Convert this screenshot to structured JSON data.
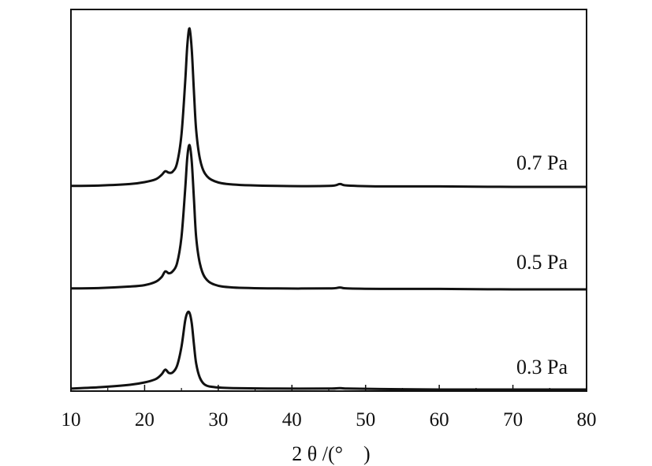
{
  "chart_data": {
    "type": "line",
    "title": "",
    "xlabel": "2 θ /(°　)",
    "ylabel": "",
    "xlim": [
      10,
      80
    ],
    "x_ticks": [
      10,
      20,
      30,
      40,
      50,
      60,
      70,
      80
    ],
    "y_ticks_labeled": false,
    "grid": false,
    "legend": "none",
    "line_color": "#111111",
    "series": [
      {
        "name": "0.7 Pa",
        "points": [
          [
            10,
            0.02
          ],
          [
            14,
            0.03
          ],
          [
            18,
            0.06
          ],
          [
            20,
            0.1
          ],
          [
            21.5,
            0.16
          ],
          [
            22.3,
            0.25
          ],
          [
            22.8,
            0.33
          ],
          [
            23.3,
            0.3
          ],
          [
            23.8,
            0.32
          ],
          [
            24.4,
            0.5
          ],
          [
            25.0,
            1.1
          ],
          [
            25.5,
            2.2
          ],
          [
            25.8,
            3.0
          ],
          [
            26.1,
            3.35
          ],
          [
            26.4,
            2.9
          ],
          [
            26.7,
            2.0
          ],
          [
            27.0,
            1.2
          ],
          [
            27.5,
            0.6
          ],
          [
            28.2,
            0.28
          ],
          [
            29.5,
            0.12
          ],
          [
            32,
            0.05
          ],
          [
            38,
            0.02
          ],
          [
            45,
            0.02
          ],
          [
            46.5,
            0.06
          ],
          [
            47.5,
            0.03
          ],
          [
            52,
            0.01
          ],
          [
            60,
            0.01
          ],
          [
            70,
            0.0
          ],
          [
            80,
            0.0
          ]
        ]
      },
      {
        "name": "0.5 Pa",
        "points": [
          [
            10,
            0.02
          ],
          [
            14,
            0.03
          ],
          [
            18,
            0.06
          ],
          [
            20,
            0.09
          ],
          [
            21.5,
            0.16
          ],
          [
            22.3,
            0.26
          ],
          [
            22.8,
            0.38
          ],
          [
            23.3,
            0.34
          ],
          [
            23.8,
            0.38
          ],
          [
            24.4,
            0.55
          ],
          [
            25.0,
            1.1
          ],
          [
            25.5,
            2.1
          ],
          [
            25.8,
            2.8
          ],
          [
            26.1,
            3.05
          ],
          [
            26.4,
            2.7
          ],
          [
            26.7,
            1.9
          ],
          [
            27.0,
            1.1
          ],
          [
            27.5,
            0.55
          ],
          [
            28.2,
            0.25
          ],
          [
            29.5,
            0.1
          ],
          [
            32,
            0.04
          ],
          [
            38,
            0.02
          ],
          [
            45,
            0.02
          ],
          [
            46.5,
            0.04
          ],
          [
            47.5,
            0.02
          ],
          [
            52,
            0.01
          ],
          [
            60,
            0.01
          ],
          [
            70,
            0.0
          ],
          [
            80,
            0.0
          ]
        ]
      },
      {
        "name": "0.3 Pa",
        "points": [
          [
            10,
            0.02
          ],
          [
            14,
            0.05
          ],
          [
            18,
            0.1
          ],
          [
            20,
            0.15
          ],
          [
            21.5,
            0.22
          ],
          [
            22.3,
            0.32
          ],
          [
            22.8,
            0.42
          ],
          [
            23.3,
            0.35
          ],
          [
            23.8,
            0.36
          ],
          [
            24.4,
            0.5
          ],
          [
            25.0,
            0.9
          ],
          [
            25.5,
            1.45
          ],
          [
            25.8,
            1.62
          ],
          [
            26.1,
            1.62
          ],
          [
            26.4,
            1.4
          ],
          [
            26.7,
            0.95
          ],
          [
            27.0,
            0.55
          ],
          [
            27.5,
            0.25
          ],
          [
            28.2,
            0.1
          ],
          [
            29.5,
            0.05
          ],
          [
            32,
            0.03
          ],
          [
            38,
            0.02
          ],
          [
            45,
            0.02
          ],
          [
            46.5,
            0.03
          ],
          [
            47.5,
            0.02
          ],
          [
            52,
            0.01
          ],
          [
            60,
            0.0
          ],
          [
            70,
            0.0
          ],
          [
            80,
            0.0
          ]
        ]
      }
    ]
  }
}
